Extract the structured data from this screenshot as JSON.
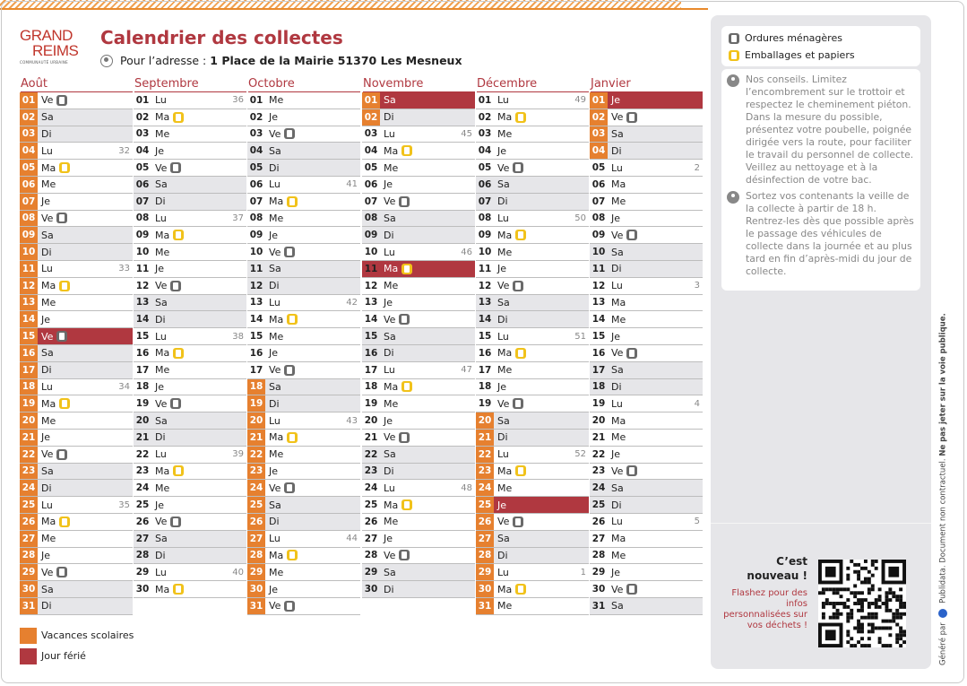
{
  "header": {
    "logo_line1": "GRAND",
    "logo_line2": "REIMS",
    "logo_line3": "COMMUNAUTÉ URBAINE",
    "title": "Calendrier des collectes",
    "address_prefix": "Pour l’adresse :",
    "address": "1 Place de la Mairie 51370 Les Mesneux"
  },
  "colors": {
    "accent_red": "#b03840",
    "vacation_orange": "#e6802f",
    "weekend_grey": "#e6e6e9",
    "household_waste": "#6a6a6a",
    "packaging_yellow": "#f1c21a"
  },
  "months": [
    {
      "name": "Août",
      "vac": [
        1,
        31
      ],
      "hol": [
        15
      ],
      "days": [
        [
          "01",
          "Ve",
          "om",
          ""
        ],
        [
          "02",
          "Sa",
          "",
          ""
        ],
        [
          "03",
          "Di",
          "",
          ""
        ],
        [
          "04",
          "Lu",
          "",
          "32"
        ],
        [
          "05",
          "Ma",
          "em",
          ""
        ],
        [
          "06",
          "Me",
          "",
          ""
        ],
        [
          "07",
          "Je",
          "",
          ""
        ],
        [
          "08",
          "Ve",
          "om",
          ""
        ],
        [
          "09",
          "Sa",
          "",
          ""
        ],
        [
          "10",
          "Di",
          "",
          ""
        ],
        [
          "11",
          "Lu",
          "",
          "33"
        ],
        [
          "12",
          "Ma",
          "em",
          ""
        ],
        [
          "13",
          "Me",
          "",
          ""
        ],
        [
          "14",
          "Je",
          "",
          ""
        ],
        [
          "15",
          "Ve",
          "om",
          ""
        ],
        [
          "16",
          "Sa",
          "",
          ""
        ],
        [
          "17",
          "Di",
          "",
          ""
        ],
        [
          "18",
          "Lu",
          "",
          "34"
        ],
        [
          "19",
          "Ma",
          "em",
          ""
        ],
        [
          "20",
          "Me",
          "",
          ""
        ],
        [
          "21",
          "Je",
          "",
          ""
        ],
        [
          "22",
          "Ve",
          "om",
          ""
        ],
        [
          "23",
          "Sa",
          "",
          ""
        ],
        [
          "24",
          "Di",
          "",
          ""
        ],
        [
          "25",
          "Lu",
          "",
          "35"
        ],
        [
          "26",
          "Ma",
          "em",
          ""
        ],
        [
          "27",
          "Me",
          "",
          ""
        ],
        [
          "28",
          "Je",
          "",
          ""
        ],
        [
          "29",
          "Ve",
          "om",
          ""
        ],
        [
          "30",
          "Sa",
          "",
          ""
        ],
        [
          "31",
          "Di",
          "",
          ""
        ]
      ]
    },
    {
      "name": "Septembre",
      "vac": [],
      "hol": [],
      "days": [
        [
          "01",
          "Lu",
          "",
          "36"
        ],
        [
          "02",
          "Ma",
          "em",
          ""
        ],
        [
          "03",
          "Me",
          "",
          ""
        ],
        [
          "04",
          "Je",
          "",
          ""
        ],
        [
          "05",
          "Ve",
          "om",
          ""
        ],
        [
          "06",
          "Sa",
          "",
          ""
        ],
        [
          "07",
          "Di",
          "",
          ""
        ],
        [
          "08",
          "Lu",
          "",
          "37"
        ],
        [
          "09",
          "Ma",
          "em",
          ""
        ],
        [
          "10",
          "Me",
          "",
          ""
        ],
        [
          "11",
          "Je",
          "",
          ""
        ],
        [
          "12",
          "Ve",
          "om",
          ""
        ],
        [
          "13",
          "Sa",
          "",
          ""
        ],
        [
          "14",
          "Di",
          "",
          ""
        ],
        [
          "15",
          "Lu",
          "",
          "38"
        ],
        [
          "16",
          "Ma",
          "em",
          ""
        ],
        [
          "17",
          "Me",
          "",
          ""
        ],
        [
          "18",
          "Je",
          "",
          ""
        ],
        [
          "19",
          "Ve",
          "om",
          ""
        ],
        [
          "20",
          "Sa",
          "",
          ""
        ],
        [
          "21",
          "Di",
          "",
          ""
        ],
        [
          "22",
          "Lu",
          "",
          "39"
        ],
        [
          "23",
          "Ma",
          "em",
          ""
        ],
        [
          "24",
          "Me",
          "",
          ""
        ],
        [
          "25",
          "Je",
          "",
          ""
        ],
        [
          "26",
          "Ve",
          "om",
          ""
        ],
        [
          "27",
          "Sa",
          "",
          ""
        ],
        [
          "28",
          "Di",
          "",
          ""
        ],
        [
          "29",
          "Lu",
          "",
          "40"
        ],
        [
          "30",
          "Ma",
          "em",
          ""
        ]
      ]
    },
    {
      "name": "Octobre",
      "vac": [
        18,
        31
      ],
      "hol": [],
      "days": [
        [
          "01",
          "Me",
          "",
          ""
        ],
        [
          "02",
          "Je",
          "",
          ""
        ],
        [
          "03",
          "Ve",
          "om",
          ""
        ],
        [
          "04",
          "Sa",
          "",
          ""
        ],
        [
          "05",
          "Di",
          "",
          ""
        ],
        [
          "06",
          "Lu",
          "",
          "41"
        ],
        [
          "07",
          "Ma",
          "em",
          ""
        ],
        [
          "08",
          "Me",
          "",
          ""
        ],
        [
          "09",
          "Je",
          "",
          ""
        ],
        [
          "10",
          "Ve",
          "om",
          ""
        ],
        [
          "11",
          "Sa",
          "",
          ""
        ],
        [
          "12",
          "Di",
          "",
          ""
        ],
        [
          "13",
          "Lu",
          "",
          "42"
        ],
        [
          "14",
          "Ma",
          "em",
          ""
        ],
        [
          "15",
          "Me",
          "",
          ""
        ],
        [
          "16",
          "Je",
          "",
          ""
        ],
        [
          "17",
          "Ve",
          "om",
          ""
        ],
        [
          "18",
          "Sa",
          "",
          ""
        ],
        [
          "19",
          "Di",
          "",
          ""
        ],
        [
          "20",
          "Lu",
          "",
          "43"
        ],
        [
          "21",
          "Ma",
          "em",
          ""
        ],
        [
          "22",
          "Me",
          "",
          ""
        ],
        [
          "23",
          "Je",
          "",
          ""
        ],
        [
          "24",
          "Ve",
          "om",
          ""
        ],
        [
          "25",
          "Sa",
          "",
          ""
        ],
        [
          "26",
          "Di",
          "",
          ""
        ],
        [
          "27",
          "Lu",
          "",
          "44"
        ],
        [
          "28",
          "Ma",
          "em",
          ""
        ],
        [
          "29",
          "Me",
          "",
          ""
        ],
        [
          "30",
          "Je",
          "",
          ""
        ],
        [
          "31",
          "Ve",
          "om",
          ""
        ]
      ]
    },
    {
      "name": "Novembre",
      "vac": [
        1,
        2
      ],
      "hol": [
        1,
        11
      ],
      "days": [
        [
          "01",
          "Sa",
          "",
          ""
        ],
        [
          "02",
          "Di",
          "",
          ""
        ],
        [
          "03",
          "Lu",
          "",
          "45"
        ],
        [
          "04",
          "Ma",
          "em",
          ""
        ],
        [
          "05",
          "Me",
          "",
          ""
        ],
        [
          "06",
          "Je",
          "",
          ""
        ],
        [
          "07",
          "Ve",
          "om",
          ""
        ],
        [
          "08",
          "Sa",
          "",
          ""
        ],
        [
          "09",
          "Di",
          "",
          ""
        ],
        [
          "10",
          "Lu",
          "",
          "46"
        ],
        [
          "11",
          "Ma",
          "em",
          ""
        ],
        [
          "12",
          "Me",
          "",
          ""
        ],
        [
          "13",
          "Je",
          "",
          ""
        ],
        [
          "14",
          "Ve",
          "om",
          ""
        ],
        [
          "15",
          "Sa",
          "",
          ""
        ],
        [
          "16",
          "Di",
          "",
          ""
        ],
        [
          "17",
          "Lu",
          "",
          "47"
        ],
        [
          "18",
          "Ma",
          "em",
          ""
        ],
        [
          "19",
          "Me",
          "",
          ""
        ],
        [
          "20",
          "Je",
          "",
          ""
        ],
        [
          "21",
          "Ve",
          "om",
          ""
        ],
        [
          "22",
          "Sa",
          "",
          ""
        ],
        [
          "23",
          "Di",
          "",
          ""
        ],
        [
          "24",
          "Lu",
          "",
          "48"
        ],
        [
          "25",
          "Ma",
          "em",
          ""
        ],
        [
          "26",
          "Me",
          "",
          ""
        ],
        [
          "27",
          "Je",
          "",
          ""
        ],
        [
          "28",
          "Ve",
          "om",
          ""
        ],
        [
          "29",
          "Sa",
          "",
          ""
        ],
        [
          "30",
          "Di",
          "",
          ""
        ]
      ]
    },
    {
      "name": "Décembre",
      "vac": [
        20,
        31
      ],
      "hol": [
        25
      ],
      "days": [
        [
          "01",
          "Lu",
          "",
          "49"
        ],
        [
          "02",
          "Ma",
          "em",
          ""
        ],
        [
          "03",
          "Me",
          "",
          ""
        ],
        [
          "04",
          "Je",
          "",
          ""
        ],
        [
          "05",
          "Ve",
          "om",
          ""
        ],
        [
          "06",
          "Sa",
          "",
          ""
        ],
        [
          "07",
          "Di",
          "",
          ""
        ],
        [
          "08",
          "Lu",
          "",
          "50"
        ],
        [
          "09",
          "Ma",
          "em",
          ""
        ],
        [
          "10",
          "Me",
          "",
          ""
        ],
        [
          "11",
          "Je",
          "",
          ""
        ],
        [
          "12",
          "Ve",
          "om",
          ""
        ],
        [
          "13",
          "Sa",
          "",
          ""
        ],
        [
          "14",
          "Di",
          "",
          ""
        ],
        [
          "15",
          "Lu",
          "",
          "51"
        ],
        [
          "16",
          "Ma",
          "em",
          ""
        ],
        [
          "17",
          "Me",
          "",
          ""
        ],
        [
          "18",
          "Je",
          "",
          ""
        ],
        [
          "19",
          "Ve",
          "om",
          ""
        ],
        [
          "20",
          "Sa",
          "",
          ""
        ],
        [
          "21",
          "Di",
          "",
          ""
        ],
        [
          "22",
          "Lu",
          "",
          "52"
        ],
        [
          "23",
          "Ma",
          "em",
          ""
        ],
        [
          "24",
          "Me",
          "",
          ""
        ],
        [
          "25",
          "Je",
          "",
          ""
        ],
        [
          "26",
          "Ve",
          "om",
          ""
        ],
        [
          "27",
          "Sa",
          "",
          ""
        ],
        [
          "28",
          "Di",
          "",
          ""
        ],
        [
          "29",
          "Lu",
          "",
          "1"
        ],
        [
          "30",
          "Ma",
          "em",
          ""
        ],
        [
          "31",
          "Me",
          "",
          ""
        ]
      ]
    },
    {
      "name": "Janvier",
      "vac": [
        1,
        4
      ],
      "hol": [
        1
      ],
      "days": [
        [
          "01",
          "Je",
          "",
          ""
        ],
        [
          "02",
          "Ve",
          "om",
          ""
        ],
        [
          "03",
          "Sa",
          "",
          ""
        ],
        [
          "04",
          "Di",
          "",
          ""
        ],
        [
          "05",
          "Lu",
          "",
          "2"
        ],
        [
          "06",
          "Ma",
          "",
          ""
        ],
        [
          "07",
          "Me",
          "",
          ""
        ],
        [
          "08",
          "Je",
          "",
          ""
        ],
        [
          "09",
          "Ve",
          "om",
          ""
        ],
        [
          "10",
          "Sa",
          "",
          ""
        ],
        [
          "11",
          "Di",
          "",
          ""
        ],
        [
          "12",
          "Lu",
          "",
          "3"
        ],
        [
          "13",
          "Ma",
          "",
          ""
        ],
        [
          "14",
          "Me",
          "",
          ""
        ],
        [
          "15",
          "Je",
          "",
          ""
        ],
        [
          "16",
          "Ve",
          "om",
          ""
        ],
        [
          "17",
          "Sa",
          "",
          ""
        ],
        [
          "18",
          "Di",
          "",
          ""
        ],
        [
          "19",
          "Lu",
          "",
          "4"
        ],
        [
          "20",
          "Ma",
          "",
          ""
        ],
        [
          "21",
          "Me",
          "",
          ""
        ],
        [
          "22",
          "Je",
          "",
          ""
        ],
        [
          "23",
          "Ve",
          "om",
          ""
        ],
        [
          "24",
          "Sa",
          "",
          ""
        ],
        [
          "25",
          "Di",
          "",
          ""
        ],
        [
          "26",
          "Lu",
          "",
          "5"
        ],
        [
          "27",
          "Ma",
          "",
          ""
        ],
        [
          "28",
          "Me",
          "",
          ""
        ],
        [
          "29",
          "Je",
          "",
          ""
        ],
        [
          "30",
          "Ve",
          "om",
          ""
        ],
        [
          "31",
          "Sa",
          "",
          ""
        ]
      ]
    }
  ],
  "legend": {
    "vacances": "Vacances scolaires",
    "ferie": "Jour férié"
  },
  "sidebar": {
    "legend_om": "Ordures ménagères",
    "legend_em": "Emballages et papiers",
    "tip1": "Nos conseils. Limitez l’encombrement sur le trottoir et respectez le cheminement piéton. Dans la mesure du possible, présentez votre poubelle, poignée dirigée vers la route, pour faciliter le travail du personnel de collecte. Veillez au nettoyage et à la désinfection de votre bac.",
    "tip2": "Sortez vos contenants la veille de la collecte à partir de 18 h. Rentrez-les dès que possible après le passage des véhicules de collecte dans la journée et au plus tard en fin d’après-midi du jour de collecte.",
    "cest": "C’est",
    "nouveau": "nouveau !",
    "flash": "Flashez pour des infos personnalisées sur vos déchets !"
  },
  "footer_side": {
    "generated": "Généré par",
    "brand": "Publidata. Document non contractuel.",
    "warning": "Ne pas jeter sur la voie publique."
  }
}
